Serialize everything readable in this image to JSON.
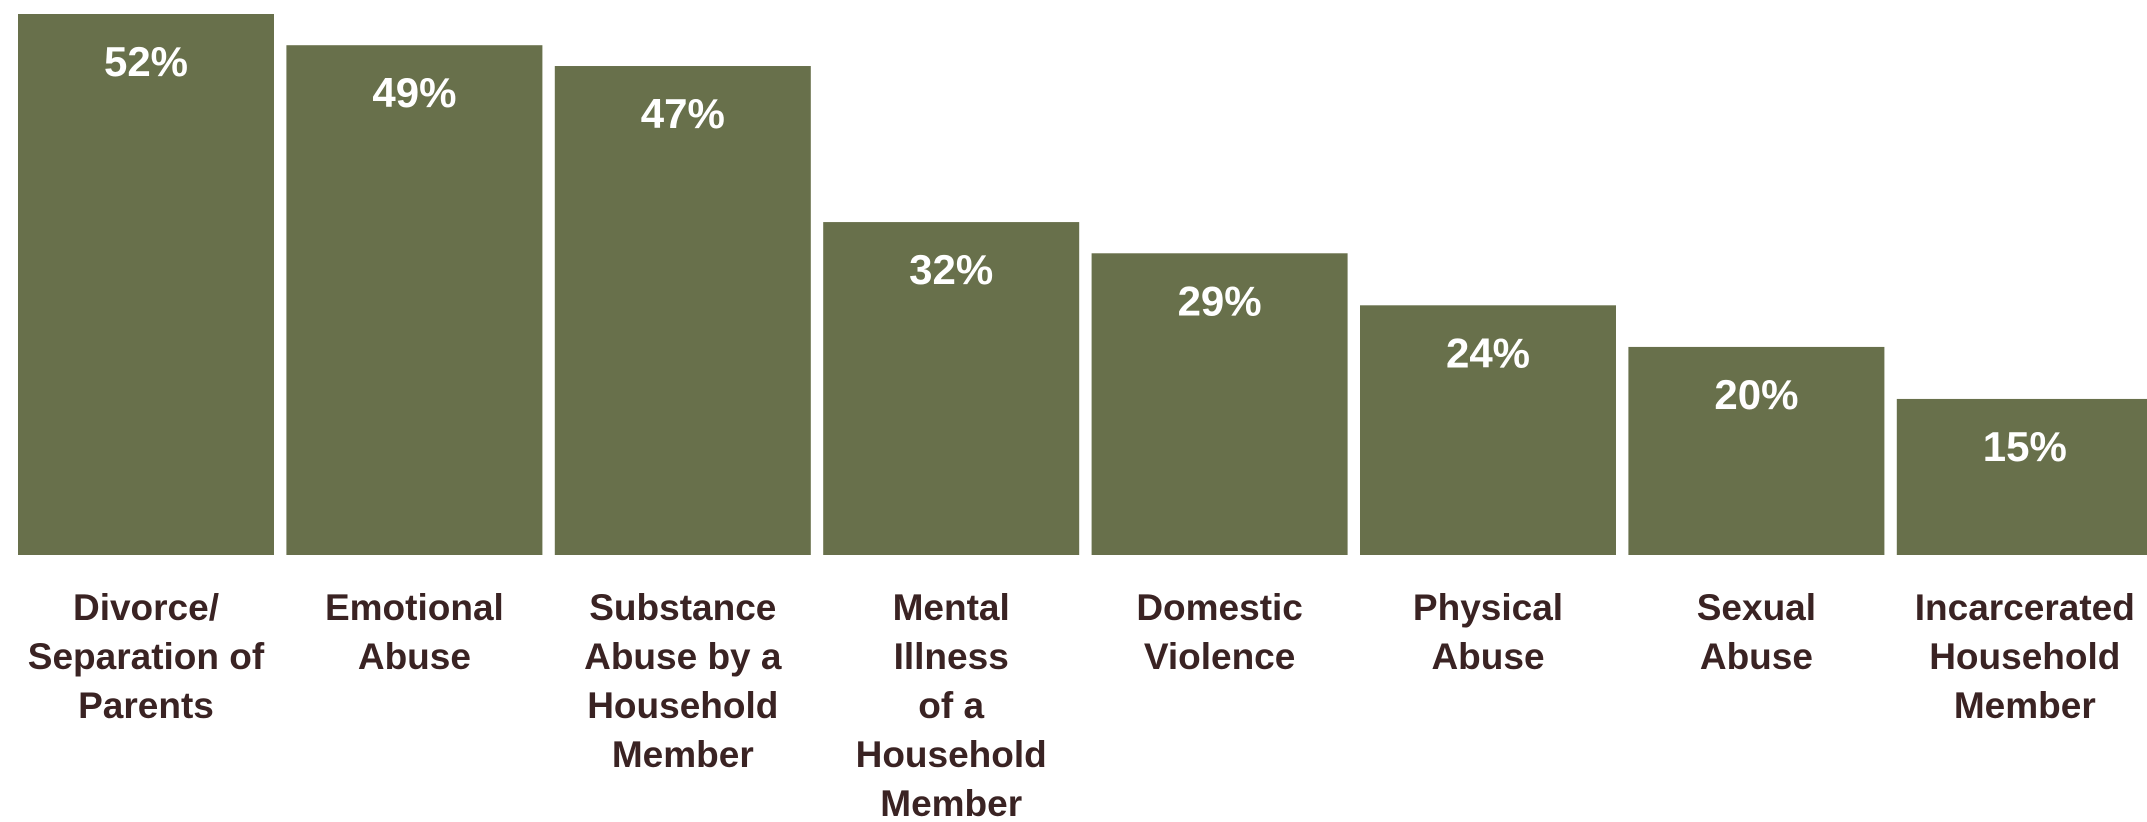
{
  "chart_data": {
    "type": "bar",
    "title": "",
    "xlabel": "",
    "ylabel": "",
    "ylim": [
      0,
      52
    ],
    "grid": false,
    "categories": [
      [
        "Divorce/",
        "Separation of",
        "Parents"
      ],
      [
        "Emotional",
        "Abuse"
      ],
      [
        "Substance",
        "Abuse by a",
        "Household",
        "Member"
      ],
      [
        "Mental",
        "Illness",
        "of a",
        "Household",
        "Member"
      ],
      [
        "Domestic",
        "Violence"
      ],
      [
        "Physical",
        "Abuse"
      ],
      [
        "Sexual",
        "Abuse"
      ],
      [
        "Incarcerated",
        "Household",
        "Member"
      ]
    ],
    "values": [
      52,
      49,
      47,
      32,
      29,
      24,
      20,
      15
    ],
    "value_labels": [
      "52%",
      "49%",
      "47%",
      "32%",
      "29%",
      "24%",
      "20%",
      "15%"
    ],
    "colors": {
      "bar": "#68704b",
      "value_text": "#ffffff",
      "label_text": "#3a2323"
    }
  }
}
